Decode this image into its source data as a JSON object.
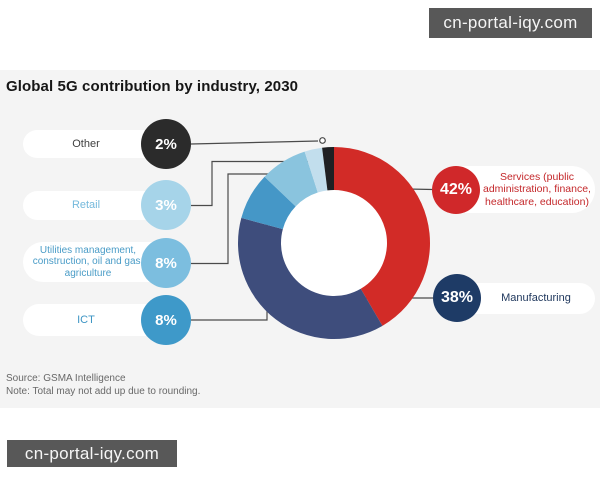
{
  "watermark_top": {
    "text": "cn-portal-iqy.com"
  },
  "watermark_bottom": {
    "text": "cn-portal-iqy.com"
  },
  "chart": {
    "title": "Global 5G contribution by industry, 2030",
    "source": "Source: GSMA Intelligence",
    "note": "Note: Total may not add up due to rounding."
  },
  "legend_left": [
    {
      "label": "Other",
      "value": "2%",
      "circle_color": "#2b2b2b",
      "label_color": "#3f3f3f"
    },
    {
      "label": "Retail",
      "value": "3%",
      "circle_color": "#a6d4e9",
      "label_color": "#74b9dc"
    },
    {
      "label": "Utilities management, construction, oil and gas, agriculture",
      "value": "8%",
      "circle_color": "#7cbedf",
      "label_color": "#4a9cc7"
    },
    {
      "label": "ICT",
      "value": "8%",
      "circle_color": "#3e99c9",
      "label_color": "#3e95c4"
    }
  ],
  "legend_right": [
    {
      "label": "Services (public administration, finance, healthcare, education)",
      "value": "42%",
      "circle_color": "#d0282a",
      "label_color": "#c4282b"
    },
    {
      "label": "Manufacturing",
      "value": "38%",
      "circle_color": "#1e3b66",
      "label_color": "#21395e"
    }
  ],
  "chart_data": {
    "type": "pie",
    "donut": true,
    "title": "Global 5G contribution by industry, 2030",
    "start_angle_deg": 0,
    "direction": "clockwise",
    "segments": [
      {
        "label": "Services (public administration, finance, healthcare, education)",
        "value_pct": 42,
        "color": "#d22b27"
      },
      {
        "label": "Manufacturing",
        "value_pct": 38,
        "color": "#3e4d7c"
      },
      {
        "label": "ICT",
        "value_pct": 8,
        "color": "#4597c7"
      },
      {
        "label": "Utilities management, construction, oil and gas, agriculture",
        "value_pct": 8,
        "color": "#8ac4de"
      },
      {
        "label": "Retail",
        "value_pct": 3,
        "color": "#c2deed"
      },
      {
        "label": "Other",
        "value_pct": 2,
        "color": "#1f2023"
      }
    ],
    "source": "Source: GSMA Intelligence",
    "note": "Note: Total may not add up due to rounding."
  }
}
